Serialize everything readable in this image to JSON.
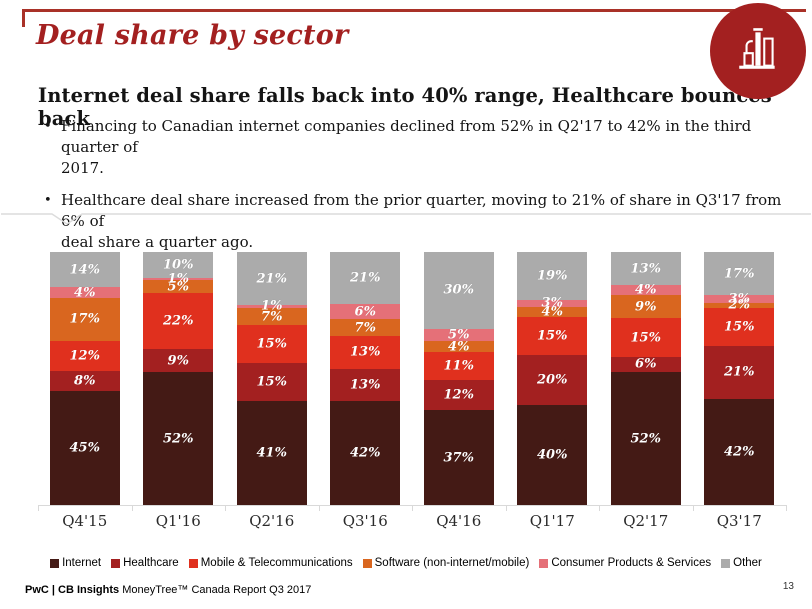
{
  "header": {
    "title": "Deal share by sector"
  },
  "summary": {
    "headline": "Internet deal share falls back into 40% range, Healthcare bounces back",
    "bullets": [
      "Financing to Canadian internet companies declined from 52% in Q2'17 to 42% in the third quarter of\n2017.",
      "Healthcare deal share increased from the prior quarter, moving to 21% of share in Q3'17 from 6% of\ndeal share a quarter ago."
    ]
  },
  "chart_data": {
    "type": "bar",
    "stacked": true,
    "stack_order": "bottom_to_top_as_listed",
    "categories": [
      "Q4'15",
      "Q1'16",
      "Q2'16",
      "Q3'16",
      "Q4'16",
      "Q1'17",
      "Q2'17",
      "Q3'17"
    ],
    "series": [
      {
        "name": "Internet",
        "color": "#441a15",
        "values": [
          45,
          52,
          41,
          42,
          37,
          40,
          52,
          42
        ]
      },
      {
        "name": "Healthcare",
        "color": "#a32020",
        "values": [
          8,
          9,
          15,
          13,
          12,
          20,
          6,
          21
        ]
      },
      {
        "name": "Mobile & Telecommunications",
        "color": "#e0301e",
        "values": [
          12,
          22,
          15,
          13,
          11,
          15,
          15,
          15
        ]
      },
      {
        "name": "Software (non-internet/mobile)",
        "color": "#d9661f",
        "values": [
          17,
          5,
          7,
          7,
          4,
          4,
          9,
          2
        ]
      },
      {
        "name": "Consumer Products & Services",
        "color": "#e57078",
        "values": [
          4,
          1,
          1,
          6,
          5,
          3,
          4,
          3
        ]
      },
      {
        "name": "Other",
        "color": "#ababab",
        "values": [
          14,
          10,
          21,
          21,
          30,
          19,
          13,
          17
        ]
      }
    ],
    "value_suffix": "%",
    "ylim": [
      0,
      100
    ],
    "grid": false,
    "legend_position": "bottom",
    "accent_color": "#a32020",
    "axis_color": "#d9d9d9"
  },
  "footer": {
    "brand_bold": "PwC | CB Insights",
    "brand_rest": "MoneyTree™ Canada Report Q3 2017",
    "page_number": "13"
  }
}
